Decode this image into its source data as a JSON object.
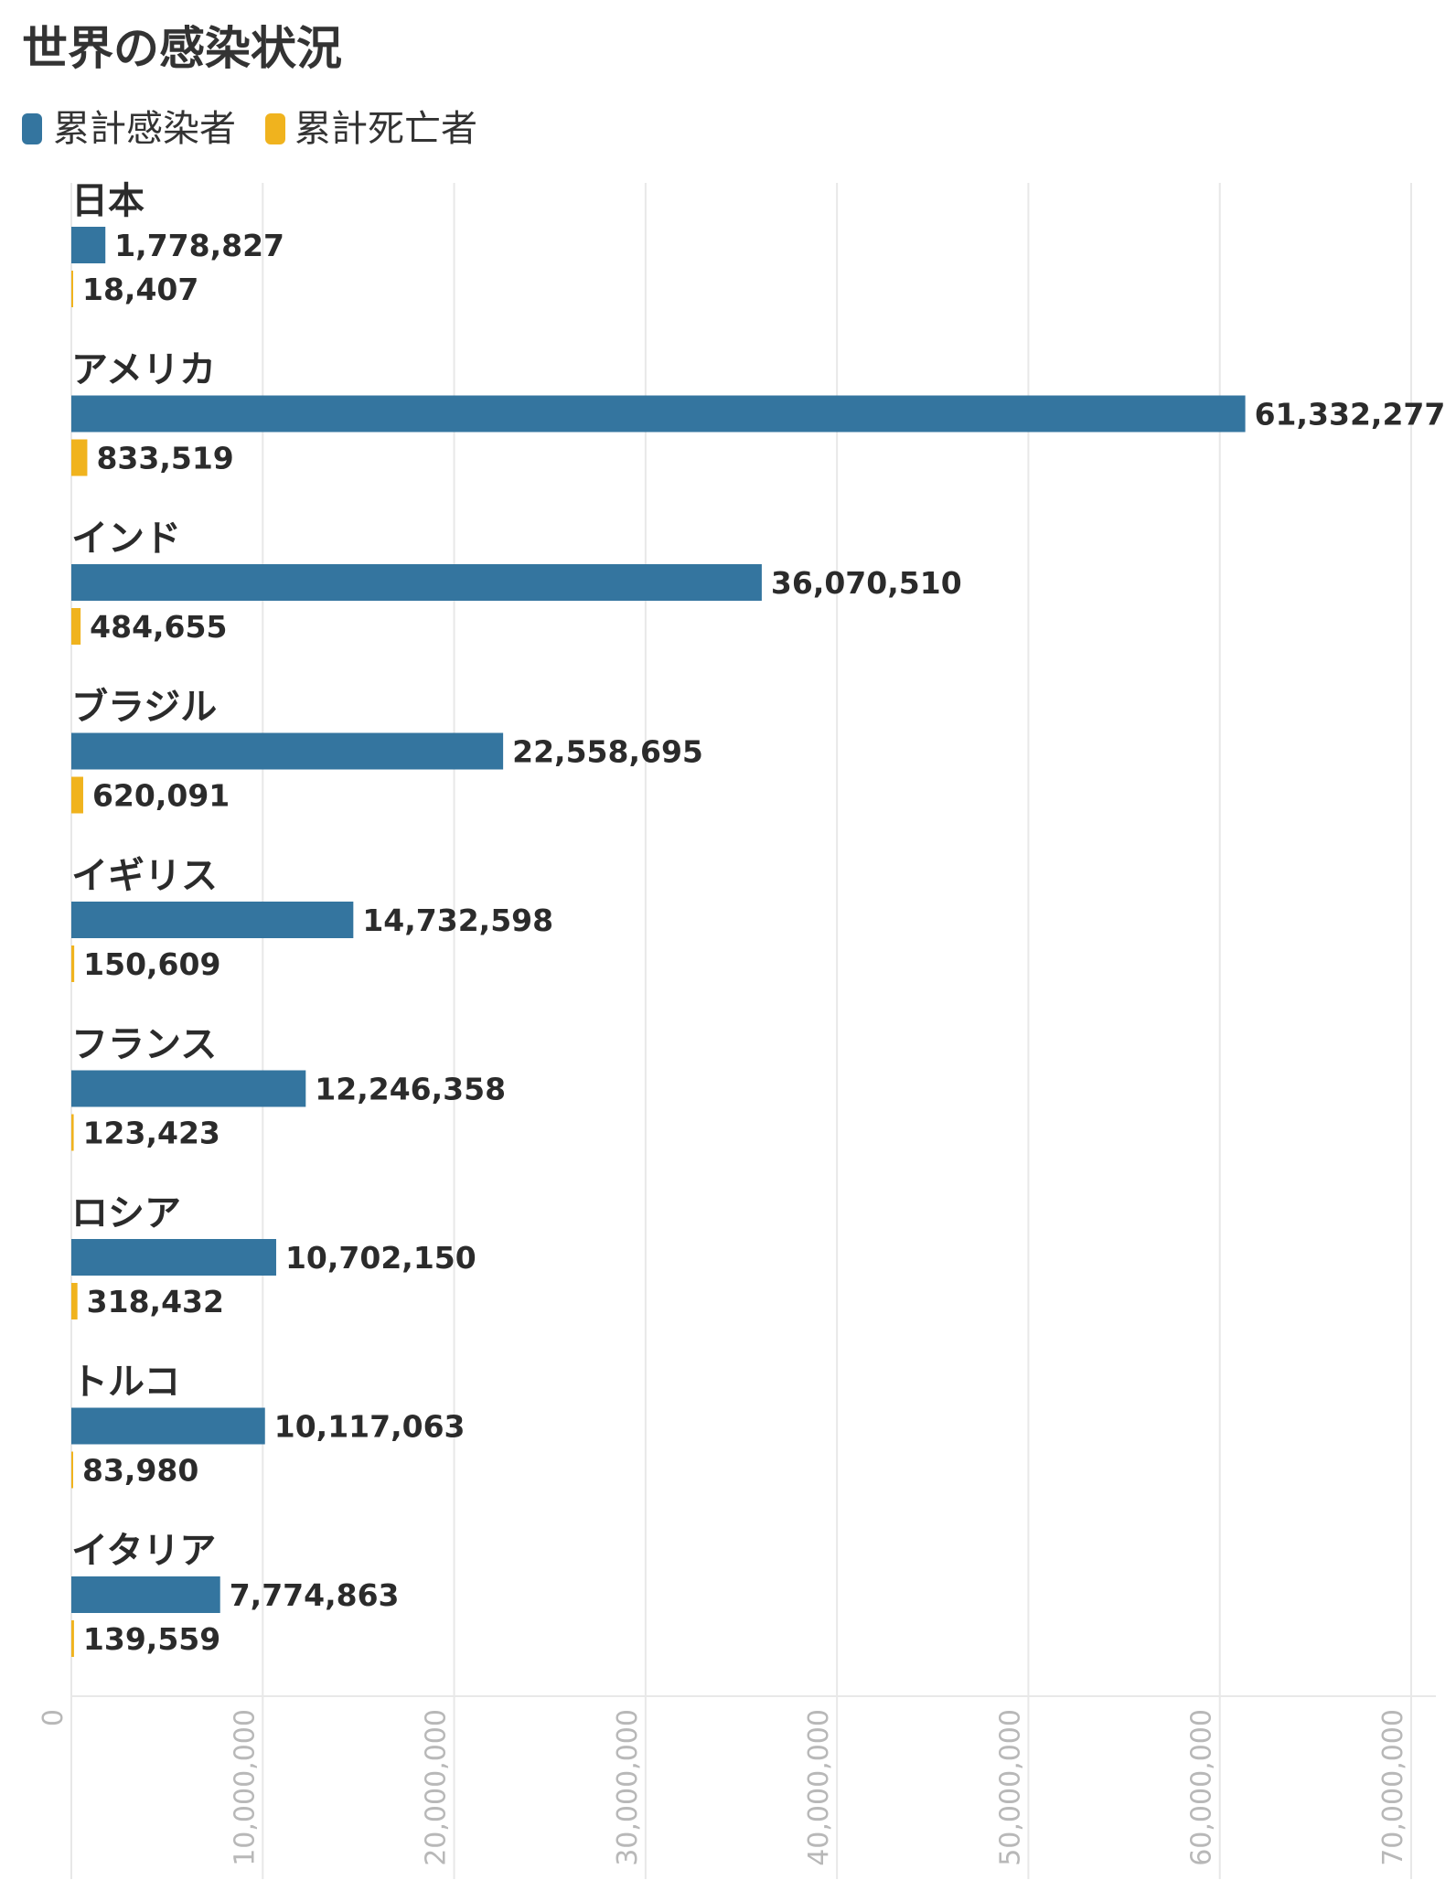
{
  "chart_data": {
    "type": "bar",
    "orientation": "horizontal",
    "title": "世界の感染状況",
    "categories": [
      "日本",
      "アメリカ",
      "インド",
      "ブラジル",
      "イギリス",
      "フランス",
      "ロシア",
      "トルコ",
      "イタリア"
    ],
    "series": [
      {
        "name": "累計感染者",
        "color": "#34759f",
        "values": [
          1778827,
          61332277,
          36070510,
          22558695,
          14732598,
          12246358,
          10702150,
          10117063,
          7774863
        ],
        "labels": [
          "1,778,827",
          "61,332,277",
          "36,070,510",
          "22,558,695",
          "14,732,598",
          "12,246,358",
          "10,702,150",
          "10,117,063",
          "7,774,863"
        ]
      },
      {
        "name": "累計死亡者",
        "color": "#f0b31e",
        "values": [
          18407,
          833519,
          484655,
          620091,
          150609,
          123423,
          318432,
          83980,
          139559
        ],
        "labels": [
          "18,407",
          "833,519",
          "484,655",
          "620,091",
          "150,609",
          "123,423",
          "318,432",
          "83,980",
          "139,559"
        ]
      }
    ],
    "xlim": [
      0,
      70000000
    ],
    "xticks": [
      0,
      10000000,
      20000000,
      30000000,
      40000000,
      50000000,
      60000000,
      70000000
    ],
    "xtick_labels": [
      "0",
      "10,000,000",
      "20,000,000",
      "30,000,000",
      "40,000,000",
      "50,000,000",
      "60,000,000",
      "70,000,000"
    ],
    "grid": true,
    "legend_position": "top-left"
  }
}
